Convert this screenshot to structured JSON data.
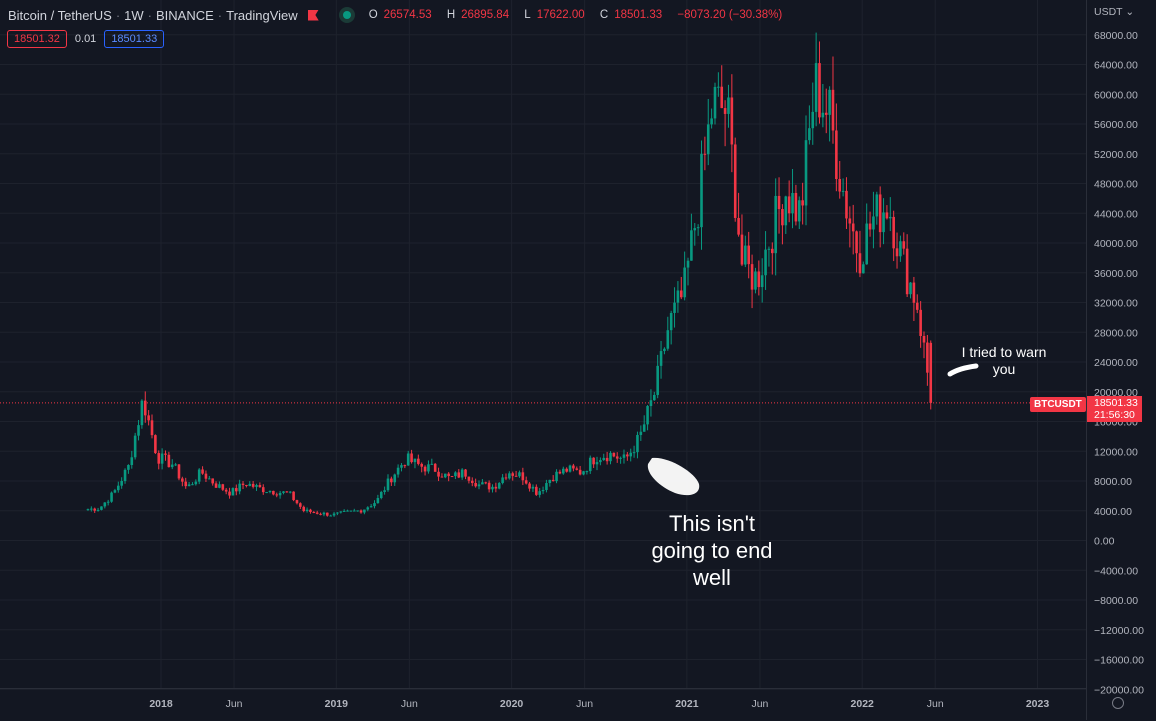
{
  "header": {
    "symbol": "Bitcoin / TetherUS",
    "interval": "1W",
    "exchange": "BINANCE",
    "provider": "TradingView",
    "ohlc": {
      "o_label": "O",
      "o": "26574.53",
      "h_label": "H",
      "h": "26895.84",
      "l_label": "L",
      "l": "17622.00",
      "c_label": "C",
      "c": "18501.33",
      "change": "−8073.20 (−30.38%)"
    }
  },
  "trade_buttons": {
    "sell": "18501.32",
    "spread": "0.01",
    "buy": "18501.33"
  },
  "price_axis": {
    "currency": "USDT",
    "labels": [
      "68000.00",
      "64000.00",
      "60000.00",
      "56000.00",
      "52000.00",
      "48000.00",
      "44000.00",
      "40000.00",
      "36000.00",
      "32000.00",
      "28000.00",
      "24000.00",
      "20000.00",
      "16000.00",
      "12000.00",
      "8000.00",
      "4000.00",
      "0.00",
      "−4000.00",
      "−8000.00",
      "−12000.00",
      "−16000.00",
      "−20000.00"
    ]
  },
  "time_axis": {
    "labels": [
      {
        "text": "2018",
        "bold": true
      },
      {
        "text": "Jun",
        "bold": false
      },
      {
        "text": "2019",
        "bold": true
      },
      {
        "text": "Jun",
        "bold": false
      },
      {
        "text": "2020",
        "bold": true
      },
      {
        "text": "Jun",
        "bold": false
      },
      {
        "text": "2021",
        "bold": true
      },
      {
        "text": "Jun",
        "bold": false
      },
      {
        "text": "2022",
        "bold": true
      },
      {
        "text": "Jun",
        "bold": false
      },
      {
        "text": "2023",
        "bold": true
      }
    ]
  },
  "last_price": {
    "symbol": "BTCUSDT",
    "price": "18501.33",
    "countdown": "21:56:30"
  },
  "annotations": {
    "big_line1": "This isn't",
    "big_line2": "going to end",
    "big_line3": "well",
    "small_line1": "I tried to warn",
    "small_line2": "you"
  },
  "colors": {
    "up": "#089981",
    "down": "#f23645",
    "background": "#131722",
    "grid": "#1e222d"
  },
  "chart_data": {
    "type": "candlestick",
    "interval": "1W",
    "x_unit": "month",
    "y_range": [
      -20000,
      68000
    ],
    "close_path": [
      [
        "2017-08",
        4200
      ],
      [
        "2017-09",
        4300
      ],
      [
        "2017-10",
        6400
      ],
      [
        "2017-11",
        9900
      ],
      [
        "2017-12",
        19000
      ],
      [
        "2018-01",
        11200
      ],
      [
        "2018-02",
        10300
      ],
      [
        "2018-03",
        7000
      ],
      [
        "2018-04",
        9200
      ],
      [
        "2018-05",
        7500
      ],
      [
        "2018-06",
        6400
      ],
      [
        "2018-07",
        7700
      ],
      [
        "2018-08",
        7000
      ],
      [
        "2018-09",
        6600
      ],
      [
        "2018-10",
        6300
      ],
      [
        "2018-11",
        4000
      ],
      [
        "2018-12",
        3700
      ],
      [
        "2019-01",
        3450
      ],
      [
        "2019-02",
        3800
      ],
      [
        "2019-03",
        4100
      ],
      [
        "2019-04",
        5300
      ],
      [
        "2019-05",
        8500
      ],
      [
        "2019-06",
        11000
      ],
      [
        "2019-07",
        10000
      ],
      [
        "2019-08",
        9600
      ],
      [
        "2019-09",
        8300
      ],
      [
        "2019-10",
        9200
      ],
      [
        "2019-11",
        7500
      ],
      [
        "2019-12",
        7200
      ],
      [
        "2020-01",
        9300
      ],
      [
        "2020-02",
        8600
      ],
      [
        "2020-03",
        6400
      ],
      [
        "2020-04",
        8600
      ],
      [
        "2020-05",
        9500
      ],
      [
        "2020-06",
        9200
      ],
      [
        "2020-07",
        11300
      ],
      [
        "2020-08",
        11600
      ],
      [
        "2020-09",
        10800
      ],
      [
        "2020-10",
        13800
      ],
      [
        "2020-11",
        19700
      ],
      [
        "2020-12",
        29000
      ],
      [
        "2021-01",
        33100
      ],
      [
        "2021-02",
        45200
      ],
      [
        "2021-03",
        58800
      ],
      [
        "2021-04",
        57700
      ],
      [
        "2021-05",
        37300
      ],
      [
        "2021-06",
        35000
      ],
      [
        "2021-07",
        41400
      ],
      [
        "2021-08",
        47100
      ],
      [
        "2021-09",
        43800
      ],
      [
        "2021-10",
        61300
      ],
      [
        "2021-11",
        57000
      ],
      [
        "2021-12",
        46300
      ],
      [
        "2022-01",
        38500
      ],
      [
        "2022-02",
        43200
      ],
      [
        "2022-03",
        45500
      ],
      [
        "2022-04",
        37600
      ],
      [
        "2022-05",
        31800
      ],
      [
        "2022-06",
        18501.33
      ]
    ],
    "last_weekly_candle": {
      "open": 26574.53,
      "high": 26895.84,
      "low": 17622.0,
      "close": 18501.33
    }
  }
}
